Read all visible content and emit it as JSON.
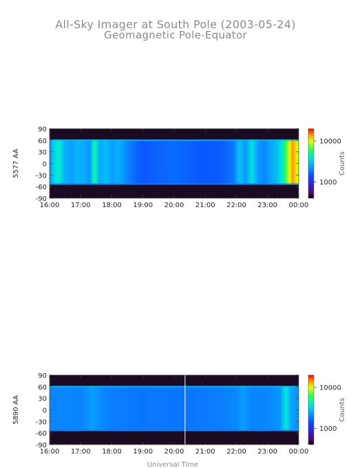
{
  "title": "All-Sky Imager at South Pole (2003-05-24)",
  "subtitle": "Geomagnetic Pole-Equator",
  "xlabel_bottom": "Universal Time",
  "chart_data": [
    {
      "type": "heatmap",
      "name": "5577 AA keogram",
      "ylabel": "5577 AA",
      "x_ticks": [
        "16:00",
        "17:00",
        "18:00",
        "19:00",
        "20:00",
        "21:00",
        "22:00",
        "23:00",
        "00:00"
      ],
      "y_ticks": [
        "90",
        "60",
        "30",
        "0",
        "-30",
        "-60",
        "-90"
      ],
      "ylim": [
        -90,
        90
      ],
      "xlim_hours": [
        16,
        24
      ],
      "colorbar": {
        "label": "Counts",
        "ticks": [
          "10000",
          "1000"
        ],
        "tick_values": [
          10000,
          1000
        ],
        "scale": "log",
        "range": [
          400,
          20000
        ]
      },
      "field_of_view_deg": [
        -55,
        62
      ],
      "profile": [
        {
          "t": 16.0,
          "counts": 2100
        },
        {
          "t": 16.15,
          "counts": 3400
        },
        {
          "t": 16.3,
          "counts": 4200
        },
        {
          "t": 16.5,
          "counts": 2600
        },
        {
          "t": 16.7,
          "counts": 2300
        },
        {
          "t": 16.9,
          "counts": 2700
        },
        {
          "t": 17.1,
          "counts": 2500
        },
        {
          "t": 17.3,
          "counts": 2200
        },
        {
          "t": 17.45,
          "counts": 5200
        },
        {
          "t": 17.6,
          "counts": 2400
        },
        {
          "t": 17.8,
          "counts": 2900
        },
        {
          "t": 18.0,
          "counts": 2300
        },
        {
          "t": 18.2,
          "counts": 2600
        },
        {
          "t": 18.5,
          "counts": 2000
        },
        {
          "t": 18.8,
          "counts": 1600
        },
        {
          "t": 19.0,
          "counts": 1500
        },
        {
          "t": 19.5,
          "counts": 1600
        },
        {
          "t": 20.0,
          "counts": 1700
        },
        {
          "t": 20.4,
          "counts": 1600
        },
        {
          "t": 21.0,
          "counts": 1500
        },
        {
          "t": 21.5,
          "counts": 1550
        },
        {
          "t": 21.9,
          "counts": 1800
        },
        {
          "t": 22.1,
          "counts": 3000
        },
        {
          "t": 22.3,
          "counts": 2200
        },
        {
          "t": 22.5,
          "counts": 3800
        },
        {
          "t": 22.7,
          "counts": 2200
        },
        {
          "t": 22.9,
          "counts": 2000
        },
        {
          "t": 23.1,
          "counts": 2400
        },
        {
          "t": 23.3,
          "counts": 2900
        },
        {
          "t": 23.5,
          "counts": 4200
        },
        {
          "t": 23.65,
          "counts": 8000
        },
        {
          "t": 23.8,
          "counts": 14000
        },
        {
          "t": 24.0,
          "counts": 9000
        }
      ]
    },
    {
      "type": "heatmap",
      "name": "5890 AA keogram",
      "ylabel": "5890 AA",
      "x_ticks": [
        "16:00",
        "17:00",
        "18:00",
        "19:00",
        "20:00",
        "21:00",
        "22:00",
        "23:00",
        "00:00"
      ],
      "y_ticks": [
        "90",
        "60",
        "30",
        "0",
        "-30",
        "-60",
        "-90"
      ],
      "ylim": [
        -90,
        90
      ],
      "xlim_hours": [
        16,
        24
      ],
      "colorbar": {
        "label": "Counts",
        "ticks": [
          "10000",
          "1000"
        ],
        "tick_values": [
          10000,
          1000
        ],
        "scale": "log",
        "range": [
          400,
          20000
        ]
      },
      "field_of_view_deg": [
        -55,
        62
      ],
      "data_gap_hour": 20.35,
      "profile": [
        {
          "t": 16.0,
          "counts": 2000
        },
        {
          "t": 16.5,
          "counts": 2000
        },
        {
          "t": 17.0,
          "counts": 1950
        },
        {
          "t": 17.4,
          "counts": 2300
        },
        {
          "t": 17.7,
          "counts": 2000
        },
        {
          "t": 18.0,
          "counts": 1900
        },
        {
          "t": 18.5,
          "counts": 1850
        },
        {
          "t": 19.0,
          "counts": 1800
        },
        {
          "t": 19.5,
          "counts": 1850
        },
        {
          "t": 20.0,
          "counts": 1800
        },
        {
          "t": 20.5,
          "counts": 1800
        },
        {
          "t": 21.0,
          "counts": 1850
        },
        {
          "t": 21.5,
          "counts": 1900
        },
        {
          "t": 22.0,
          "counts": 2000
        },
        {
          "t": 22.2,
          "counts": 2300
        },
        {
          "t": 22.5,
          "counts": 1950
        },
        {
          "t": 23.0,
          "counts": 2000
        },
        {
          "t": 23.4,
          "counts": 2200
        },
        {
          "t": 23.6,
          "counts": 4000
        },
        {
          "t": 23.75,
          "counts": 2400
        },
        {
          "t": 24.0,
          "counts": 2100
        }
      ]
    }
  ]
}
